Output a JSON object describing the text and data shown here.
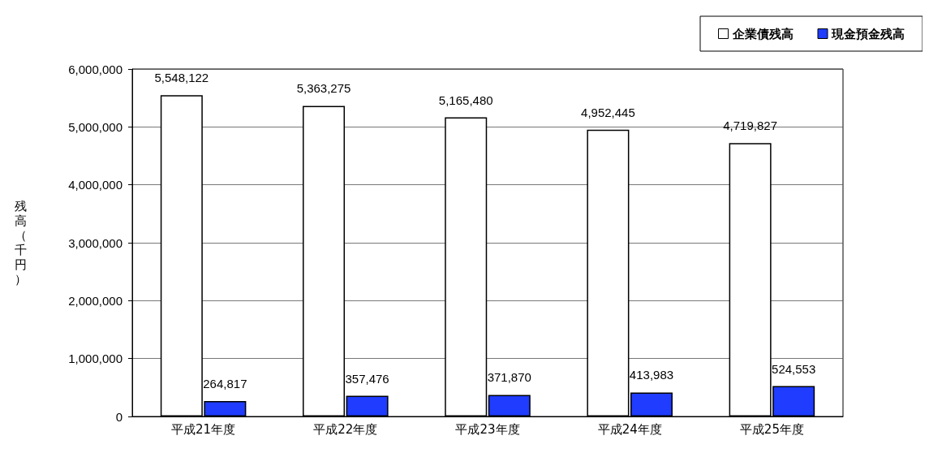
{
  "chart_data": {
    "type": "bar",
    "ylabel": "残高（千円）",
    "categories": [
      "平成21年度",
      "平成22年度",
      "平成23年度",
      "平成24年度",
      "平成25年度"
    ],
    "series": [
      {
        "name": "企業債残高",
        "color": "#ffffff",
        "values": [
          5548122,
          5363275,
          5165480,
          4952445,
          4719827
        ],
        "value_labels": [
          "5,548,122",
          "5,363,275",
          "5,165,480",
          "4,952,445",
          "4,719,827"
        ]
      },
      {
        "name": "現金預金残高",
        "color": "#1f3cff",
        "values": [
          264817,
          357476,
          371870,
          413983,
          524553
        ],
        "value_labels": [
          "264,817",
          "357,476",
          "371,870",
          "413,983",
          "524,553"
        ]
      }
    ],
    "ylim": [
      0,
      6000000
    ],
    "yticks": [
      {
        "value": 0,
        "label": "0"
      },
      {
        "value": 1000000,
        "label": "1,000,000"
      },
      {
        "value": 2000000,
        "label": "2,000,000"
      },
      {
        "value": 3000000,
        "label": "3,000,000"
      },
      {
        "value": 4000000,
        "label": "4,000,000"
      },
      {
        "value": 5000000,
        "label": "5,000,000"
      },
      {
        "value": 6000000,
        "label": "6,000,000"
      }
    ],
    "grid": "y",
    "legend": "top right"
  }
}
